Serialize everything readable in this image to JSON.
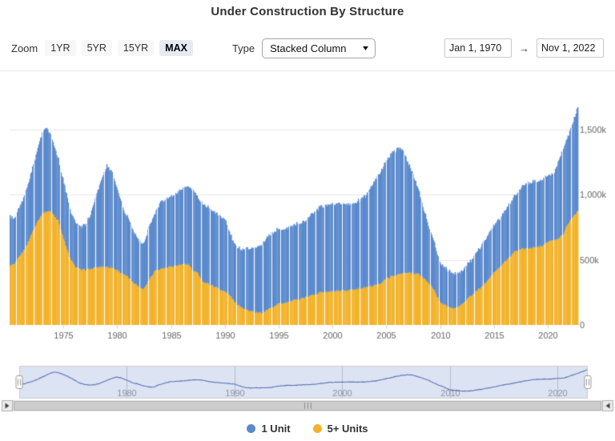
{
  "title": "Under Construction By Structure",
  "toolbar": {
    "zoom_label": "Zoom",
    "zoom_buttons": [
      {
        "label": "1YR",
        "selected": false
      },
      {
        "label": "5YR",
        "selected": false
      },
      {
        "label": "15YR",
        "selected": false
      },
      {
        "label": "MAX",
        "selected": true
      }
    ],
    "type_label": "Type",
    "type_value": "Stacked Column",
    "chevron_icon": "▾",
    "date_from": "Jan 1, 1970",
    "date_arrow": "→",
    "date_to": "Nov 1, 2022"
  },
  "legend": [
    {
      "label": "1 Unit",
      "color": "#5b8acd"
    },
    {
      "label": "5+ Units",
      "color": "#f3b32b"
    }
  ],
  "colors": {
    "one_unit": "#5b8acd",
    "five_plus": "#f3b32b",
    "gridline": "#e6e6e6",
    "axis_label": "#666666",
    "tick": "#cccccc",
    "nav_mask": "#dce3f3",
    "nav_line": "#5a73b4",
    "nav_gridline": "#b6bccf",
    "nav_outline": "#cccccc",
    "nav_label": "#8e93a3",
    "scroll_track": "#f2f2f2",
    "scroll_track_border": "#e6e6e6",
    "scroll_thumb": "#cdcdcd",
    "scroll_thumb_border": "#b0b0b0",
    "scroll_arrow_bg": "#ebebeb",
    "scroll_arrow": "#444444",
    "selected_button_bg": "#e6eaf3"
  },
  "chart_data": {
    "type": "bar",
    "stacked": true,
    "title": "Under Construction By Structure",
    "xlabel": "",
    "ylabel": "",
    "units": "thousands of housing units (k)",
    "x_range": [
      1970.0,
      2022.917
    ],
    "ylim": [
      0,
      1800
    ],
    "grid": true,
    "legend_position": "bottom",
    "y_ticks": [
      {
        "value": 0,
        "label": "0"
      },
      {
        "value": 500,
        "label": "500k"
      },
      {
        "value": 1000,
        "label": "1,000k"
      },
      {
        "value": 1500,
        "label": "1,500k"
      }
    ],
    "x_ticks": [
      1975,
      1980,
      1985,
      1990,
      1995,
      2000,
      2005,
      2010,
      2015,
      2020
    ],
    "stack_order_bottom_to_top": [
      "5+ Units",
      "1 Unit"
    ],
    "sample_years": [
      1970.0,
      1970.4,
      1971.0,
      1971.5,
      1972.0,
      1972.5,
      1973.0,
      1973.3,
      1973.7,
      1974.0,
      1974.5,
      1975.0,
      1975.5,
      1976.0,
      1976.6,
      1977.0,
      1977.5,
      1978.0,
      1978.6,
      1979.0,
      1979.5,
      1980.0,
      1980.6,
      1981.0,
      1981.6,
      1982.0,
      1982.4,
      1983.0,
      1983.5,
      1984.0,
      1985.0,
      1986.0,
      1986.6,
      1987.0,
      1987.5,
      1988.0,
      1989.0,
      1990.0,
      1990.5,
      1991.0,
      1991.6,
      1992.0,
      1992.5,
      1993.0,
      1993.5,
      1994.0,
      1994.5,
      1995.0,
      1995.5,
      1996.0,
      1997.0,
      1997.5,
      1998.0,
      1998.5,
      1999.0,
      2000.0,
      2001.0,
      2002.0,
      2003.0,
      2003.5,
      2004.0,
      2004.5,
      2005.0,
      2005.5,
      2006.2,
      2006.6,
      2007.0,
      2007.5,
      2008.0,
      2008.5,
      2009.0,
      2009.5,
      2010.0,
      2010.5,
      2011.0,
      2011.5,
      2012.0,
      2012.5,
      2013.0,
      2013.5,
      2014.0,
      2014.5,
      2015.0,
      2015.5,
      2016.0,
      2016.5,
      2017.0,
      2017.5,
      2018.0,
      2019.0,
      2019.5,
      2020.0,
      2020.3,
      2020.6,
      2021.0,
      2021.5,
      2022.0,
      2022.4,
      2022.83
    ],
    "series": [
      {
        "name": "1 Unit",
        "color": "#5b8acd",
        "values": [
          375,
          345,
          390,
          430,
          480,
          545,
          625,
          650,
          600,
          545,
          470,
          430,
          375,
          340,
          325,
          345,
          420,
          550,
          690,
          780,
          730,
          620,
          480,
          455,
          380,
          350,
          345,
          415,
          440,
          515,
          540,
          578,
          598,
          612,
          580,
          595,
          573,
          555,
          475,
          435,
          447,
          475,
          485,
          498,
          525,
          565,
          570,
          577,
          560,
          580,
          580,
          590,
          625,
          645,
          657,
          670,
          665,
          655,
          700,
          745,
          815,
          858,
          905,
          948,
          970,
          940,
          850,
          760,
          645,
          530,
          425,
          358,
          303,
          285,
          273,
          264,
          255,
          264,
          273,
          299,
          330,
          350,
          355,
          373,
          390,
          410,
          427,
          466,
          499,
          505,
          510,
          512,
          500,
          515,
          590,
          660,
          675,
          730,
          795
        ]
      },
      {
        "name": "5+ Units",
        "color": "#f3b32b",
        "values": [
          455,
          465,
          540,
          600,
          700,
          790,
          855,
          870,
          875,
          855,
          800,
          660,
          530,
          455,
          420,
          425,
          430,
          440,
          450,
          445,
          440,
          420,
          385,
          365,
          320,
          295,
          275,
          355,
          420,
          430,
          450,
          462,
          467,
          418,
          395,
          330,
          297,
          255,
          225,
          165,
          138,
          115,
          105,
          92,
          95,
          120,
          140,
          163,
          170,
          180,
          200,
          212,
          225,
          240,
          253,
          255,
          260,
          275,
          285,
          295,
          305,
          322,
          355,
          372,
          390,
          395,
          400,
          400,
          390,
          360,
          320,
          262,
          178,
          150,
          132,
          126,
          158,
          196,
          230,
          266,
          300,
          345,
          400,
          437,
          480,
          520,
          568,
          582,
          586,
          596,
          610,
          640,
          648,
          645,
          662,
          700,
          790,
          832,
          875
        ]
      }
    ],
    "navigator_labels": [
      "1980",
      "1990",
      "2000",
      "2010",
      "2020"
    ]
  }
}
